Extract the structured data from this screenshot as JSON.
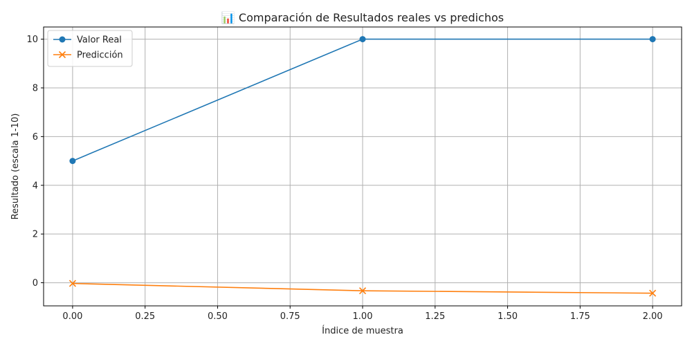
{
  "chart_data": {
    "type": "line",
    "title": "📊 Comparación de Resultados reales vs predichos",
    "xlabel": "Índice de muestra",
    "ylabel": "Resultado (escala 1-10)",
    "x": [
      0,
      1,
      2
    ],
    "xlim": [
      -0.1,
      2.1
    ],
    "ylim": [
      -0.95,
      10.5
    ],
    "xticks": [
      0.0,
      0.25,
      0.5,
      0.75,
      1.0,
      1.25,
      1.5,
      1.75,
      2.0
    ],
    "xtick_labels": [
      "0.00",
      "0.25",
      "0.50",
      "0.75",
      "1.00",
      "1.25",
      "1.50",
      "1.75",
      "2.00"
    ],
    "yticks": [
      0,
      2,
      4,
      6,
      8,
      10
    ],
    "ytick_labels": [
      "0",
      "2",
      "4",
      "6",
      "8",
      "10"
    ],
    "grid": true,
    "legend_position": "top-left",
    "series": [
      {
        "name": "Valor Real",
        "values": [
          5,
          10,
          10
        ],
        "color": "#1f77b4",
        "marker": "circle"
      },
      {
        "name": "Predicción",
        "values": [
          -0.03,
          -0.33,
          -0.43
        ],
        "color": "#ff7f0e",
        "marker": "x"
      }
    ]
  }
}
